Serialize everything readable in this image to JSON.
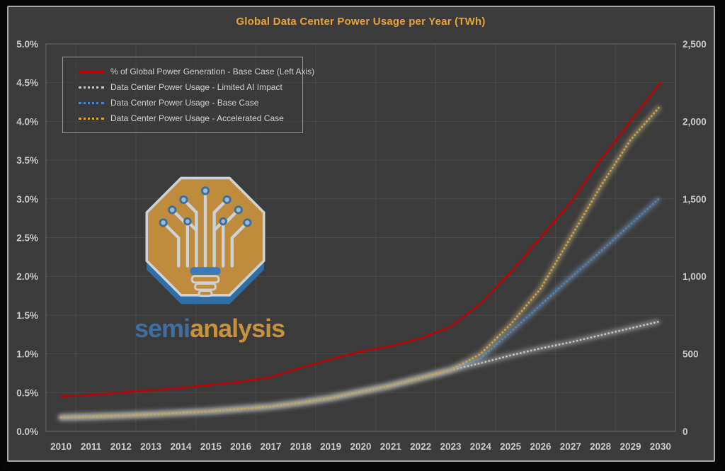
{
  "title": "Global Data Center Power Usage per Year (TWh)",
  "logo": {
    "wordmark_semi": "semi",
    "wordmark_analysis": "analysis"
  },
  "colors": {
    "background": "#3b3b3b",
    "frame": "#070707",
    "panel_border": "#a8a8a8",
    "grid": "#4a4a4a",
    "plot_border": "#6e6e6e",
    "title_text": "#e8a33b",
    "axis_text": "#cbcbcb",
    "legend_text": "#d2d2d2",
    "legend_border": "#9b9b9b",
    "red": "#c00000",
    "gray": "#c9c9c9",
    "blue": "#4e86c0",
    "orange": "#d8a63c",
    "logo_gold": "#bf8b3d",
    "logo_blue": "#2e6ea5",
    "logo_trace": "#ccd2d8"
  },
  "chart_data": {
    "type": "line",
    "title": "Global Data Center Power Usage per Year (TWh)",
    "x": [
      2010,
      2011,
      2012,
      2013,
      2014,
      2015,
      2016,
      2017,
      2018,
      2019,
      2020,
      2021,
      2022,
      2023,
      2024,
      2025,
      2026,
      2027,
      2028,
      2029,
      2030
    ],
    "x_tick_labels": [
      "2010",
      "2011",
      "2012",
      "2013",
      "2014",
      "2015",
      "2016",
      "2017",
      "2018",
      "2019",
      "2020",
      "2021",
      "2022",
      "2023",
      "2024",
      "2025",
      "2026",
      "2027",
      "2028",
      "2029",
      "2030"
    ],
    "left_axis": {
      "min": 0,
      "max": 5,
      "unit": "%",
      "ticks": [
        "0.0%",
        "0.5%",
        "1.0%",
        "1.5%",
        "2.0%",
        "2.5%",
        "3.0%",
        "3.5%",
        "4.0%",
        "4.5%",
        "5.0%"
      ]
    },
    "right_axis": {
      "min": 0,
      "max": 2500,
      "unit": "TWh",
      "ticks": [
        "0",
        "500",
        "1,000",
        "1,500",
        "2,000",
        "2,500"
      ]
    },
    "grid": true,
    "legend_position": "top-left",
    "series": [
      {
        "name": "% of Global Power Generation - Base Case (Left Axis)",
        "axis": "left",
        "dash": "solid",
        "color": "#c00000",
        "glow": "",
        "values": [
          0.45,
          0.47,
          0.5,
          0.53,
          0.56,
          0.6,
          0.64,
          0.7,
          0.82,
          0.93,
          1.03,
          1.1,
          1.2,
          1.35,
          1.65,
          2.05,
          2.5,
          2.95,
          3.5,
          4.0,
          4.5
        ]
      },
      {
        "name": "Data Center Power Usage - Limited AI Impact",
        "axis": "right",
        "dash": "dot",
        "color": "#c9c9c9",
        "glow": "#e8e8e8",
        "values": [
          90,
          95,
          102,
          110,
          120,
          130,
          145,
          160,
          185,
          215,
          255,
          295,
          345,
          395,
          440,
          490,
          535,
          575,
          620,
          665,
          710
        ]
      },
      {
        "name": "Data Center Power Usage - Base Case",
        "axis": "right",
        "dash": "dot",
        "color": "#4e86c0",
        "glow": "#8fbbe8",
        "values": [
          90,
          95,
          102,
          110,
          120,
          130,
          145,
          160,
          185,
          215,
          255,
          295,
          345,
          395,
          470,
          640,
          815,
          990,
          1160,
          1335,
          1510
        ]
      },
      {
        "name": "Data Center Power Usage - Accelerated Case",
        "axis": "right",
        "dash": "dot",
        "color": "#d8a63c",
        "glow": "#ecd394",
        "values": [
          90,
          95,
          102,
          110,
          120,
          130,
          145,
          160,
          185,
          215,
          255,
          295,
          345,
          395,
          500,
          690,
          920,
          1250,
          1580,
          1880,
          2100
        ]
      }
    ]
  }
}
